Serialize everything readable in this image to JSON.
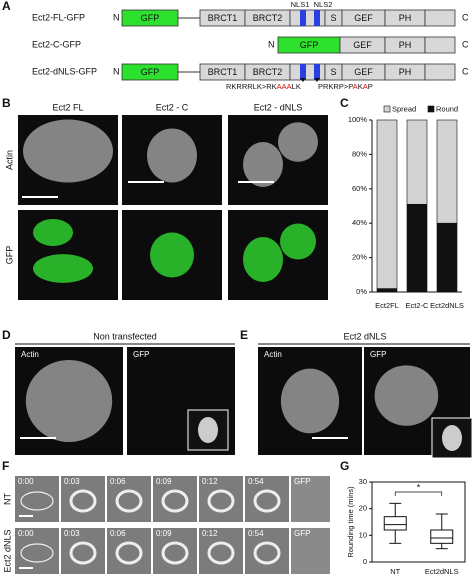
{
  "panel_labels": [
    "A",
    "B",
    "C",
    "D",
    "E",
    "F",
    "G"
  ],
  "constructs": {
    "rows": [
      "Ect2-FL-GFP",
      "Ect2-C-GFP",
      "Ect2-dNLS-GFP"
    ],
    "domains": {
      "n": "N",
      "c": "C",
      "gfp": "GFP",
      "brct1": "BRCT1",
      "brct2": "BRCT2",
      "s": "S",
      "gef": "GEF",
      "ph": "PH",
      "nls1": "NLS1",
      "nls2": "NLS2"
    },
    "mutation1": [
      {
        "text": "RKRRRLK>RK",
        "color": "#111"
      },
      {
        "text": "AAA",
        "color": "#d01010"
      },
      {
        "text": "LK",
        "color": "#111"
      }
    ],
    "mutation2": [
      {
        "text": "PRKRP>P",
        "color": "#111"
      },
      {
        "text": "A",
        "color": "#d01010"
      },
      {
        "text": "K",
        "color": "#111"
      },
      {
        "text": "A",
        "color": "#d01010"
      },
      {
        "text": "P",
        "color": "#111"
      }
    ]
  },
  "panel_b": {
    "column_titles": [
      "Ect2 FL",
      "Ect2 - C",
      "Ect2 - dNLS"
    ],
    "row_titles": [
      "Actin",
      "GFP"
    ]
  },
  "panel_d": {
    "title": "Non transfected",
    "labels": [
      "Actin",
      "GFP"
    ]
  },
  "panel_e": {
    "title": "Ect2 dNLS",
    "labels": [
      "Actin",
      "GFP"
    ]
  },
  "panel_f": {
    "times": [
      "0:00",
      "0:03",
      "0:06",
      "0:09",
      "0:12",
      "0:54"
    ],
    "gfp": "GFP",
    "rows": [
      "NT",
      "Ect2 dNLS"
    ]
  },
  "chart_data": [
    {
      "type": "bar",
      "stacked": true,
      "legend": "top",
      "categories": [
        "Ect2FL",
        "Ect2-C",
        "Ect2dNLS"
      ],
      "series": [
        {
          "name": "Spread",
          "color": "#d3d3d3",
          "values": [
            98,
            49,
            60
          ]
        },
        {
          "name": "Round",
          "color": "#111111",
          "values": [
            2,
            51,
            40
          ]
        }
      ],
      "ylim": [
        0,
        100
      ],
      "yticks": [
        {
          "value": 0,
          "label": "0%"
        },
        {
          "value": 20,
          "label": "20%"
        },
        {
          "value": 40,
          "label": "40%"
        },
        {
          "value": 60,
          "label": "60%"
        },
        {
          "value": 80,
          "label": "80%"
        },
        {
          "value": 100,
          "label": "100%"
        }
      ]
    },
    {
      "type": "box",
      "ylabel": "Rounding time (mins)",
      "annotation": "*",
      "categories": [
        "NT",
        "Ect2dNLS"
      ],
      "boxes": [
        {
          "whislo": 7,
          "q1": 12,
          "med": 14,
          "q3": 17,
          "whishi": 22
        },
        {
          "whislo": 5,
          "q1": 7,
          "med": 9,
          "q3": 12,
          "whishi": 18
        }
      ],
      "ylim": [
        0,
        30
      ],
      "yticks": [
        0,
        10,
        20,
        30
      ]
    }
  ]
}
